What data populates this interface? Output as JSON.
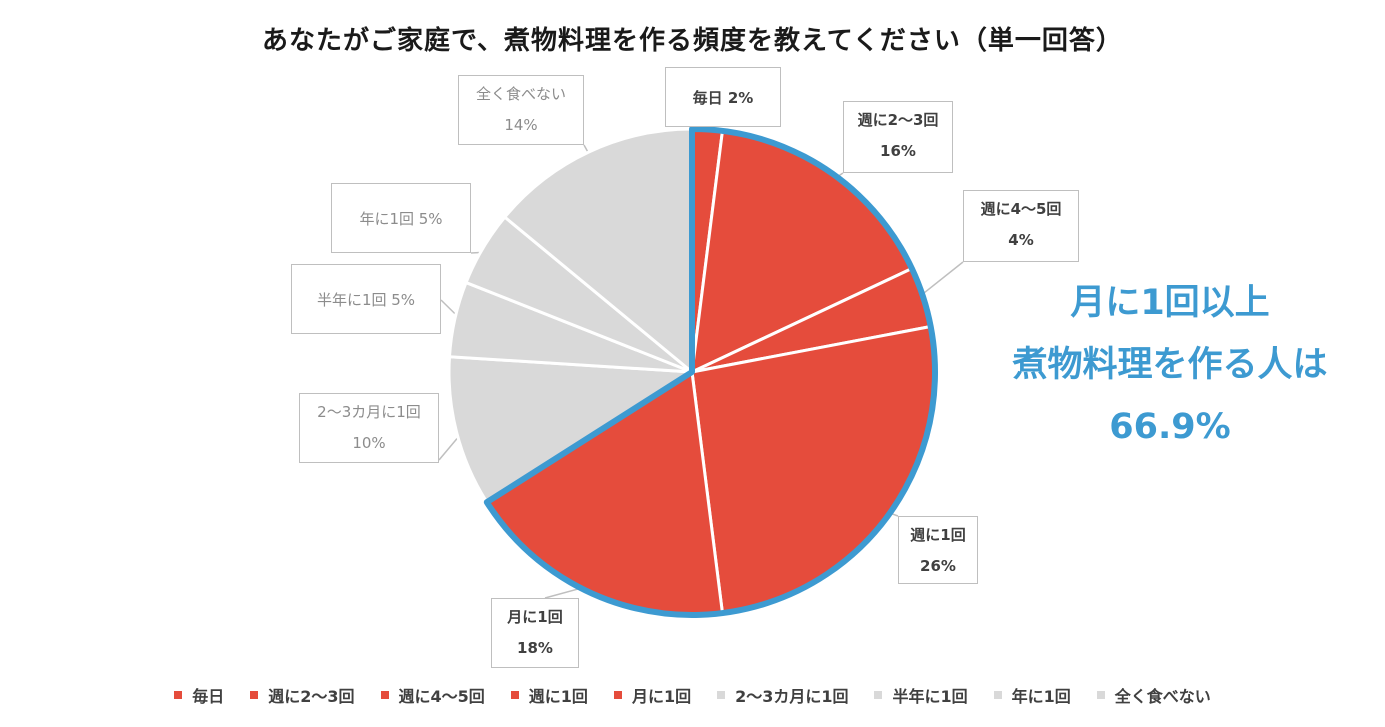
{
  "chart_data": {
    "type": "pie",
    "title": "あなたがご家庭で、煮物料理を作る頻度を教えてください（単一回答）",
    "slices": [
      {
        "label": "毎日",
        "value": 2,
        "display": "2%",
        "color": "#e54c3c"
      },
      {
        "label": "週に2～3回",
        "value": 16,
        "display": "16%",
        "color": "#e54c3c"
      },
      {
        "label": "週に4～5回",
        "value": 4,
        "display": "4%",
        "color": "#e54c3c"
      },
      {
        "label": "週に1回",
        "value": 26,
        "display": "26%",
        "color": "#e54c3c"
      },
      {
        "label": "月に1回",
        "value": 18,
        "display": "18%",
        "color": "#e54c3c"
      },
      {
        "label": "2～3カ月に1回",
        "value": 10,
        "display": "10%",
        "color": "#d9d9d9"
      },
      {
        "label": "半年に1回",
        "value": 5,
        "display": "5%",
        "color": "#d9d9d9"
      },
      {
        "label": "年に1回",
        "value": 5,
        "display": "5%",
        "color": "#d9d9d9"
      },
      {
        "label": "全く食べない",
        "value": 14,
        "display": "14%",
        "color": "#d9d9d9"
      }
    ],
    "legend": {
      "position": "bottom",
      "items": [
        "毎日",
        "週に2～3回",
        "週に4～5回",
        "週に1回",
        "月に1回",
        "2～3カ月に1回",
        "半年に1回",
        "年に1回",
        "全く食べない"
      ]
    },
    "annotation": {
      "lines": [
        "月に1回以上",
        "煮物料理を作る人は",
        "66.9%"
      ],
      "color": "#3d9ad1"
    },
    "highlight_group_color": "#3d9ad1"
  }
}
